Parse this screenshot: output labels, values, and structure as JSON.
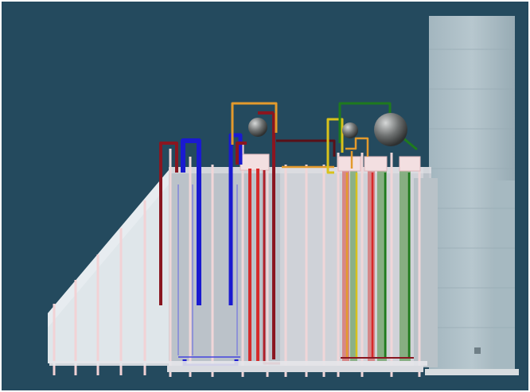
{
  "scene": {
    "kind": "3d-boiler-plant-render",
    "labels_visible": false,
    "colors": {
      "background": "#244a5e",
      "casing": "#c9ccd3",
      "casing_shade": "#b7bcc6",
      "inlet_duct": "#dfe6ea",
      "stack": "#a9bcc4",
      "stack_dark": "#94aab3",
      "column": "#f0d6d8",
      "pipe_dark_red": "#8a1620",
      "pipe_red": "#d52a2a",
      "pipe_blue": "#1a1ad0",
      "pipe_orange": "#e39a2c",
      "pipe_green": "#1e7a1e",
      "pipe_yellow": "#d9c21b",
      "drum": "#6f7272",
      "tube_green": "#79a873",
      "tube_red": "#d77a7a",
      "base_rail": "#e5e5ea"
    },
    "components": [
      "inlet-duct",
      "boiler-casing",
      "steam-drum-small",
      "steam-drum-medium",
      "steam-drum-large",
      "downcomer-pipes",
      "riser-pipes",
      "evaporator-tube-bundles",
      "exhaust-stack",
      "support-columns",
      "base-rail"
    ]
  }
}
